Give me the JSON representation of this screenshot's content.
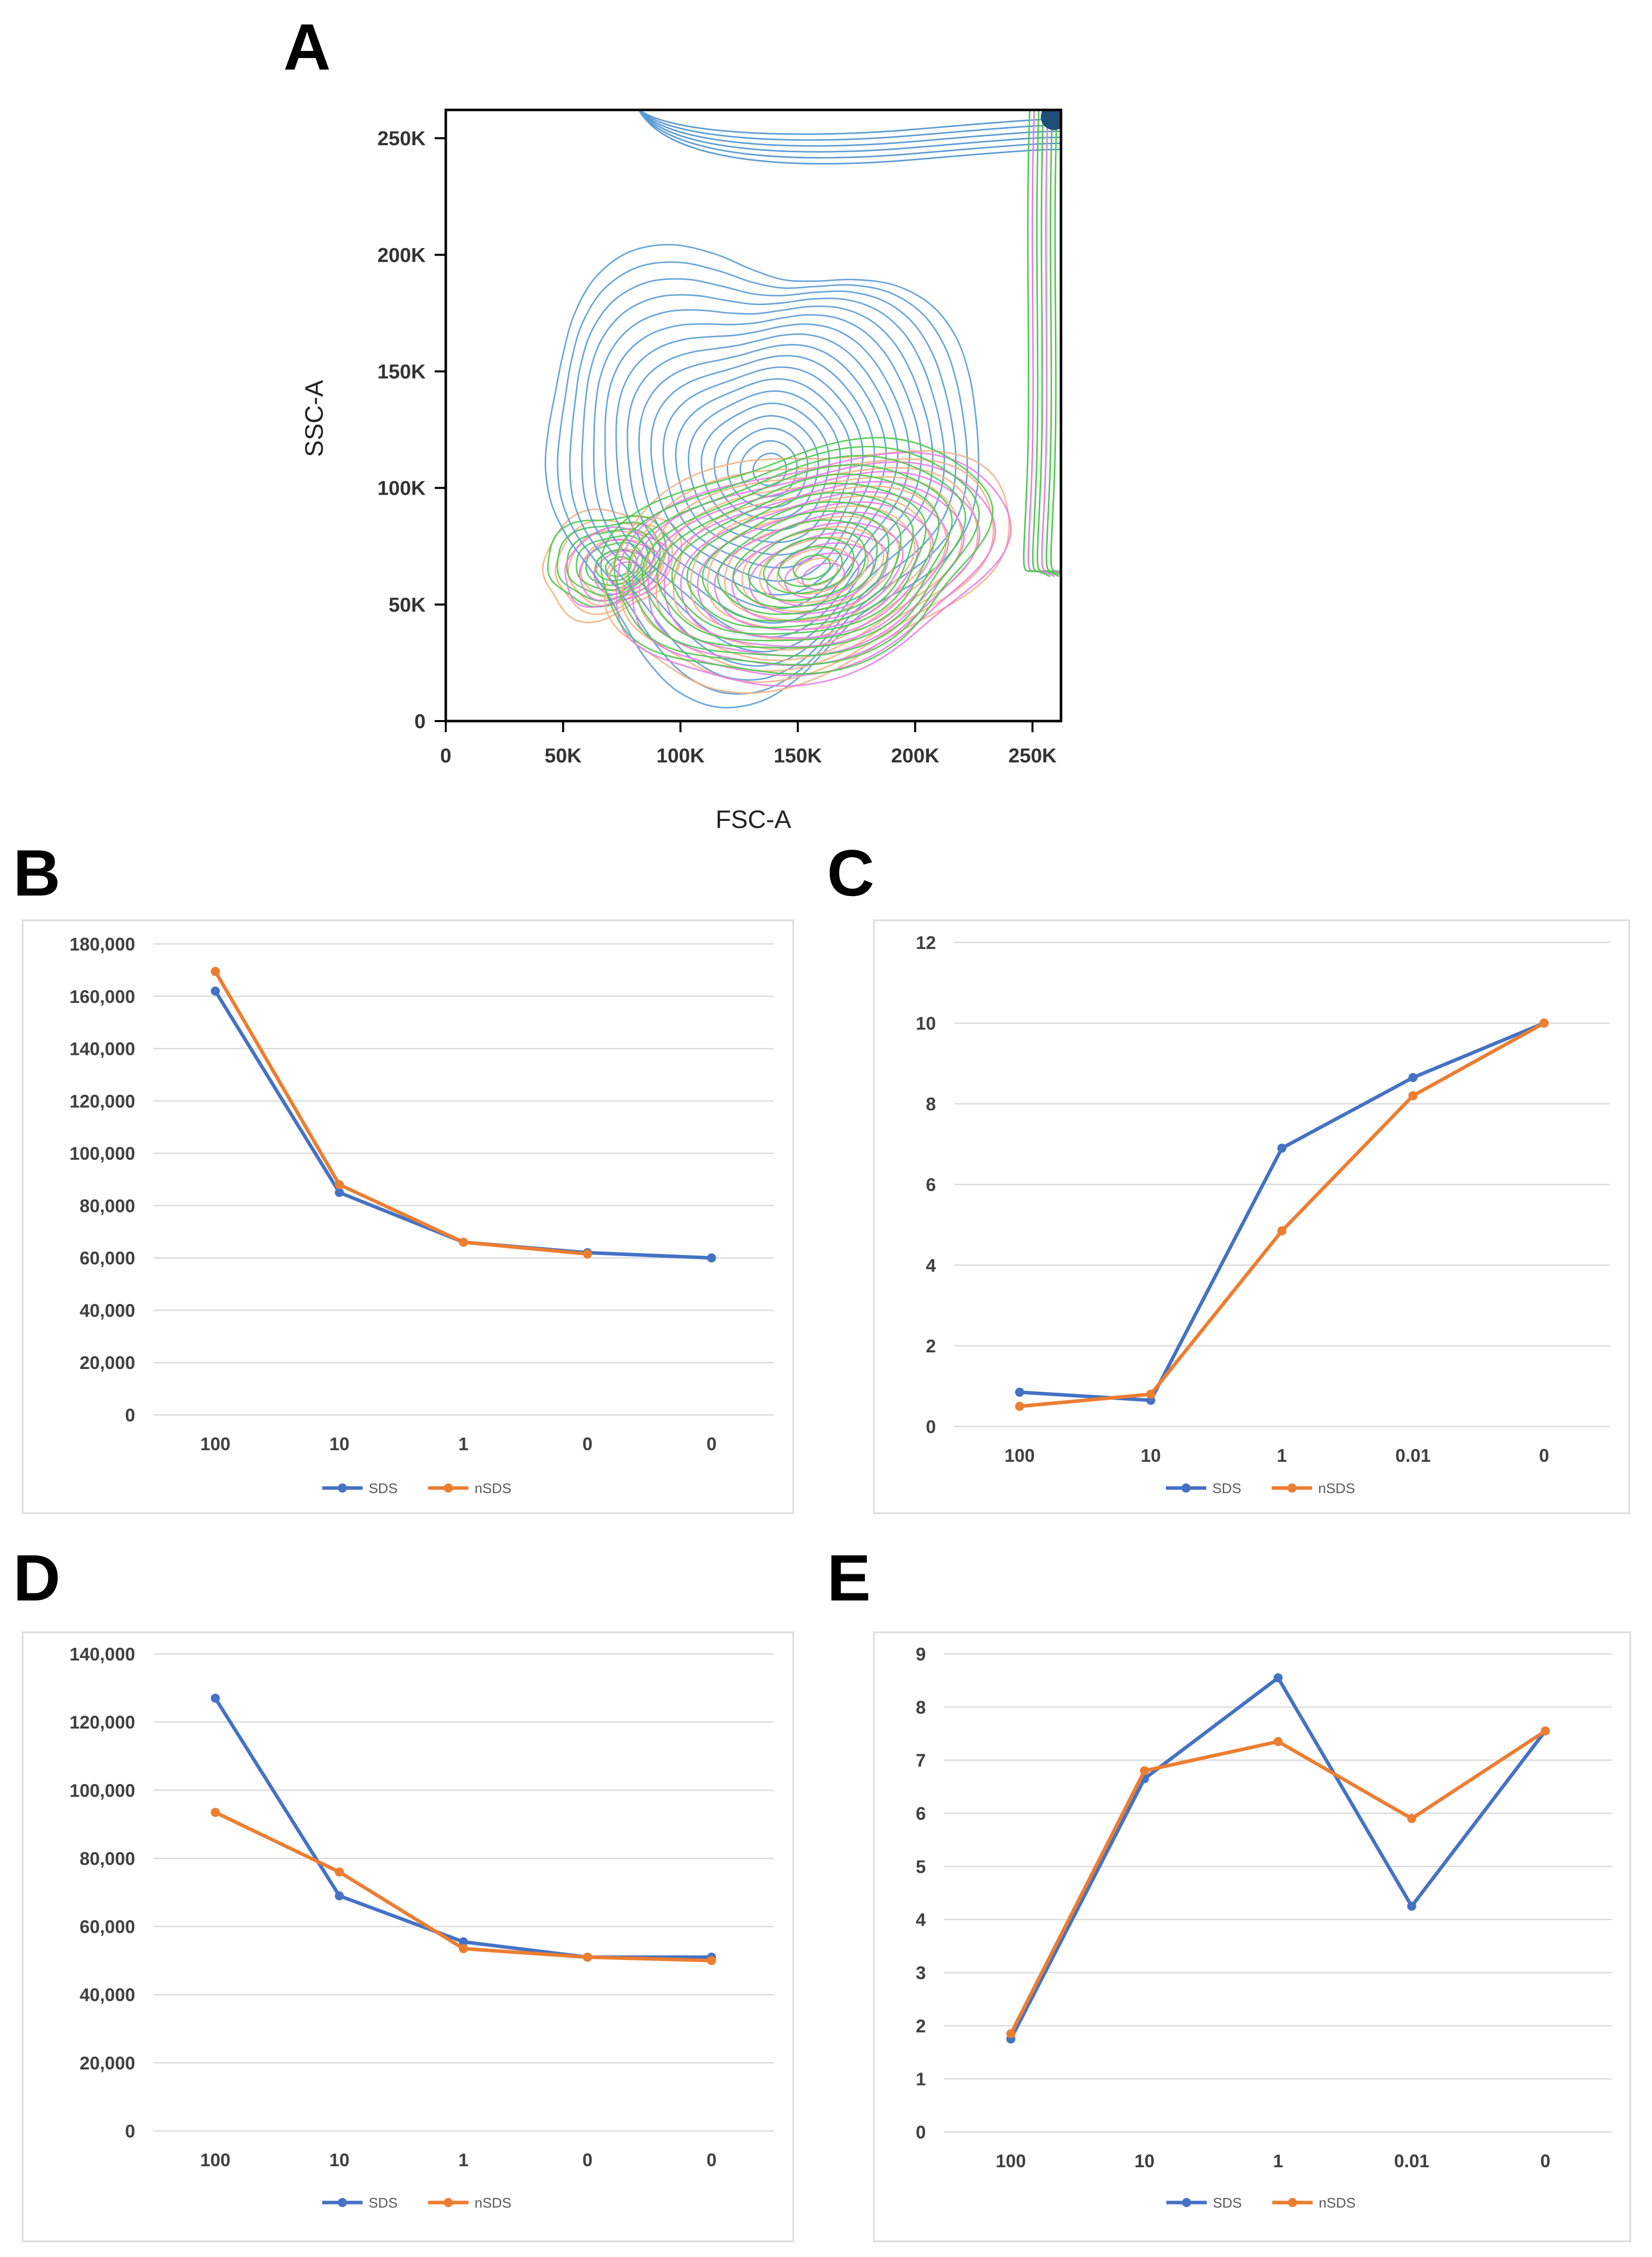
{
  "figure": {
    "panel_labels": [
      "A",
      "B",
      "C",
      "D",
      "E"
    ]
  },
  "chart_data": [
    {
      "panel": "A",
      "type": "contour",
      "xlabel": "FSC-A",
      "ylabel": "SSC-A",
      "xlim": [
        0,
        262144
      ],
      "ylim": [
        0,
        262144
      ],
      "x_ticks": [
        0,
        50000,
        100000,
        150000,
        200000,
        250000
      ],
      "x_tick_labels": [
        "0",
        "50K",
        "100K",
        "150K",
        "200K",
        "250K"
      ],
      "y_ticks": [
        0,
        50000,
        100000,
        150000,
        200000,
        250000
      ],
      "y_tick_labels": [
        "0",
        "50K",
        "100K",
        "150K",
        "200K",
        "250K"
      ],
      "colors": {
        "blue": "#5b9bd5",
        "green": "#4ec94e",
        "orange": "#f4b183",
        "pink": "#e87de8",
        "dark": "#1f4e79"
      },
      "populations": [
        {
          "name": "blue",
          "cx": 135000,
          "cy": 97000
        },
        {
          "name": "green",
          "cx": 148000,
          "cy": 70000
        },
        {
          "name": "orange",
          "cx": 150000,
          "cy": 68000
        },
        {
          "name": "pink",
          "cx": 152000,
          "cy": 66000
        }
      ]
    },
    {
      "panel": "B",
      "type": "line",
      "categories": [
        "100",
        "10",
        "1",
        "0",
        "0"
      ],
      "series": [
        {
          "name": "SDS",
          "color": "#4472c4",
          "values": [
            162000,
            85000,
            66000,
            62000,
            60000
          ]
        },
        {
          "name": "nSDS",
          "color": "#ed7d31",
          "values": [
            169500,
            88000,
            66000,
            61500,
            null
          ]
        }
      ],
      "ylim": [
        0,
        180000
      ],
      "y_ticks": [
        0,
        20000,
        40000,
        60000,
        80000,
        100000,
        120000,
        140000,
        160000,
        180000
      ],
      "y_tick_labels": [
        "0",
        "20,000",
        "40,000",
        "60,000",
        "80,000",
        "100,000",
        "120,000",
        "140,000",
        "160,000",
        "180,000"
      ],
      "legend": "bottom"
    },
    {
      "panel": "C",
      "type": "line",
      "categories": [
        "100",
        "10",
        "1",
        "0.01",
        "0"
      ],
      "series": [
        {
          "name": "SDS",
          "color": "#4472c4",
          "values": [
            0.85,
            0.65,
            6.9,
            8.65,
            10
          ]
        },
        {
          "name": "nSDS",
          "color": "#ed7d31",
          "values": [
            0.5,
            0.8,
            4.85,
            8.2,
            10
          ]
        }
      ],
      "ylim": [
        0,
        12
      ],
      "y_ticks": [
        0,
        2,
        4,
        6,
        8,
        10,
        12
      ],
      "y_tick_labels": [
        "0",
        "2",
        "4",
        "6",
        "8",
        "10",
        "12"
      ],
      "legend": "bottom"
    },
    {
      "panel": "D",
      "type": "line",
      "categories": [
        "100",
        "10",
        "1",
        "0",
        "0"
      ],
      "series": [
        {
          "name": "SDS",
          "color": "#4472c4",
          "values": [
            127000,
            69000,
            55500,
            51000,
            51000
          ]
        },
        {
          "name": "nSDS",
          "color": "#ed7d31",
          "values": [
            93500,
            76000,
            53500,
            51000,
            50000
          ]
        }
      ],
      "ylim": [
        0,
        140000
      ],
      "y_ticks": [
        0,
        20000,
        40000,
        60000,
        80000,
        100000,
        120000,
        140000
      ],
      "y_tick_labels": [
        "0",
        "20,000",
        "40,000",
        "60,000",
        "80,000",
        "100,000",
        "120,000",
        "140,000"
      ],
      "legend": "bottom"
    },
    {
      "panel": "E",
      "type": "line",
      "categories": [
        "100",
        "10",
        "1",
        "0.01",
        "0"
      ],
      "series": [
        {
          "name": "SDS",
          "color": "#4472c4",
          "values": [
            1.75,
            6.65,
            8.55,
            4.25,
            7.55
          ]
        },
        {
          "name": "nSDS",
          "color": "#ed7d31",
          "values": [
            1.85,
            6.8,
            7.35,
            5.9,
            7.55
          ]
        }
      ],
      "ylim": [
        0,
        9
      ],
      "y_ticks": [
        0,
        1,
        2,
        3,
        4,
        5,
        6,
        7,
        8,
        9
      ],
      "y_tick_labels": [
        "0",
        "1",
        "2",
        "3",
        "4",
        "5",
        "6",
        "7",
        "8",
        "9"
      ],
      "legend": "bottom"
    }
  ]
}
